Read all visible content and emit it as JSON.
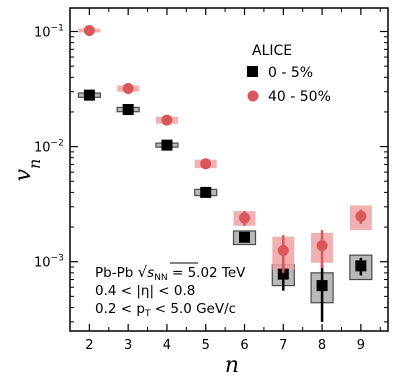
{
  "chart_data": {
    "type": "scatter",
    "xlabel": "n",
    "ylabel": "v",
    "ylabel_sub": "n",
    "xlim": [
      1.5,
      9.7
    ],
    "ylim": [
      0.00025,
      0.16
    ],
    "yscale": "log",
    "x_ticks": [
      2,
      3,
      4,
      5,
      6,
      7,
      8,
      9
    ],
    "x_tick_labels": [
      "2",
      "3",
      "4",
      "5",
      "6",
      "7",
      "8",
      "9"
    ],
    "y_ticks": [
      0.1,
      0.01,
      0.001
    ],
    "y_tick_labels": [
      {
        "base": "10",
        "exp": "−1"
      },
      {
        "base": "10",
        "exp": "−2"
      },
      {
        "base": "10",
        "exp": "−3"
      }
    ],
    "legend": {
      "title": "ALICE",
      "placement": "top-right",
      "entries": [
        {
          "label": "0 - 5%",
          "series": 0
        },
        {
          "label": "40 - 50%",
          "series": 1
        }
      ]
    },
    "annotations": {
      "line1_prefix": "Pb-Pb ",
      "line1_sqrt": "s",
      "line1_sub": "NN",
      "line1_suffix": " = 5.02 TeV",
      "line2": "0.4 < |η| < 0.8",
      "line3_prefix": "0.2 < p",
      "line3_sub": "T",
      "line3_suffix": " < 5.0 GeV/c"
    },
    "series": [
      {
        "name": "0 - 5%",
        "marker": "square",
        "color": "#000000",
        "sys_color": "#9a9a9a",
        "x": [
          2,
          3,
          4,
          5,
          6,
          7,
          8,
          9
        ],
        "y": [
          0.028,
          0.021,
          0.0103,
          0.004,
          0.00163,
          0.00078,
          0.00062,
          0.00092
        ],
        "stat_err": [
          0.0004,
          0.0003,
          0.0002,
          0.0001,
          0.00012,
          0.00022,
          0.00032,
          0.00016
        ],
        "sys_err": [
          0.0012,
          0.0009,
          0.0004,
          0.00025,
          0.00022,
          0.00016,
          0.00018,
          0.00022
        ]
      },
      {
        "name": "40 - 50%",
        "marker": "circle",
        "color": "#d9575b",
        "sys_color": "#eea3a4",
        "x": [
          2,
          3,
          4,
          5,
          6,
          7,
          8,
          9
        ],
        "y": [
          0.102,
          0.032,
          0.017,
          0.0071,
          0.0024,
          0.00125,
          0.00138,
          0.00248
        ],
        "stat_err": [
          0.001,
          0.0006,
          0.0003,
          0.0002,
          0.00035,
          0.00045,
          0.0005,
          0.00035
        ],
        "sys_err": [
          0.003,
          0.002,
          0.0012,
          0.0006,
          0.00035,
          0.0004,
          0.0004,
          0.0006
        ]
      }
    ]
  }
}
